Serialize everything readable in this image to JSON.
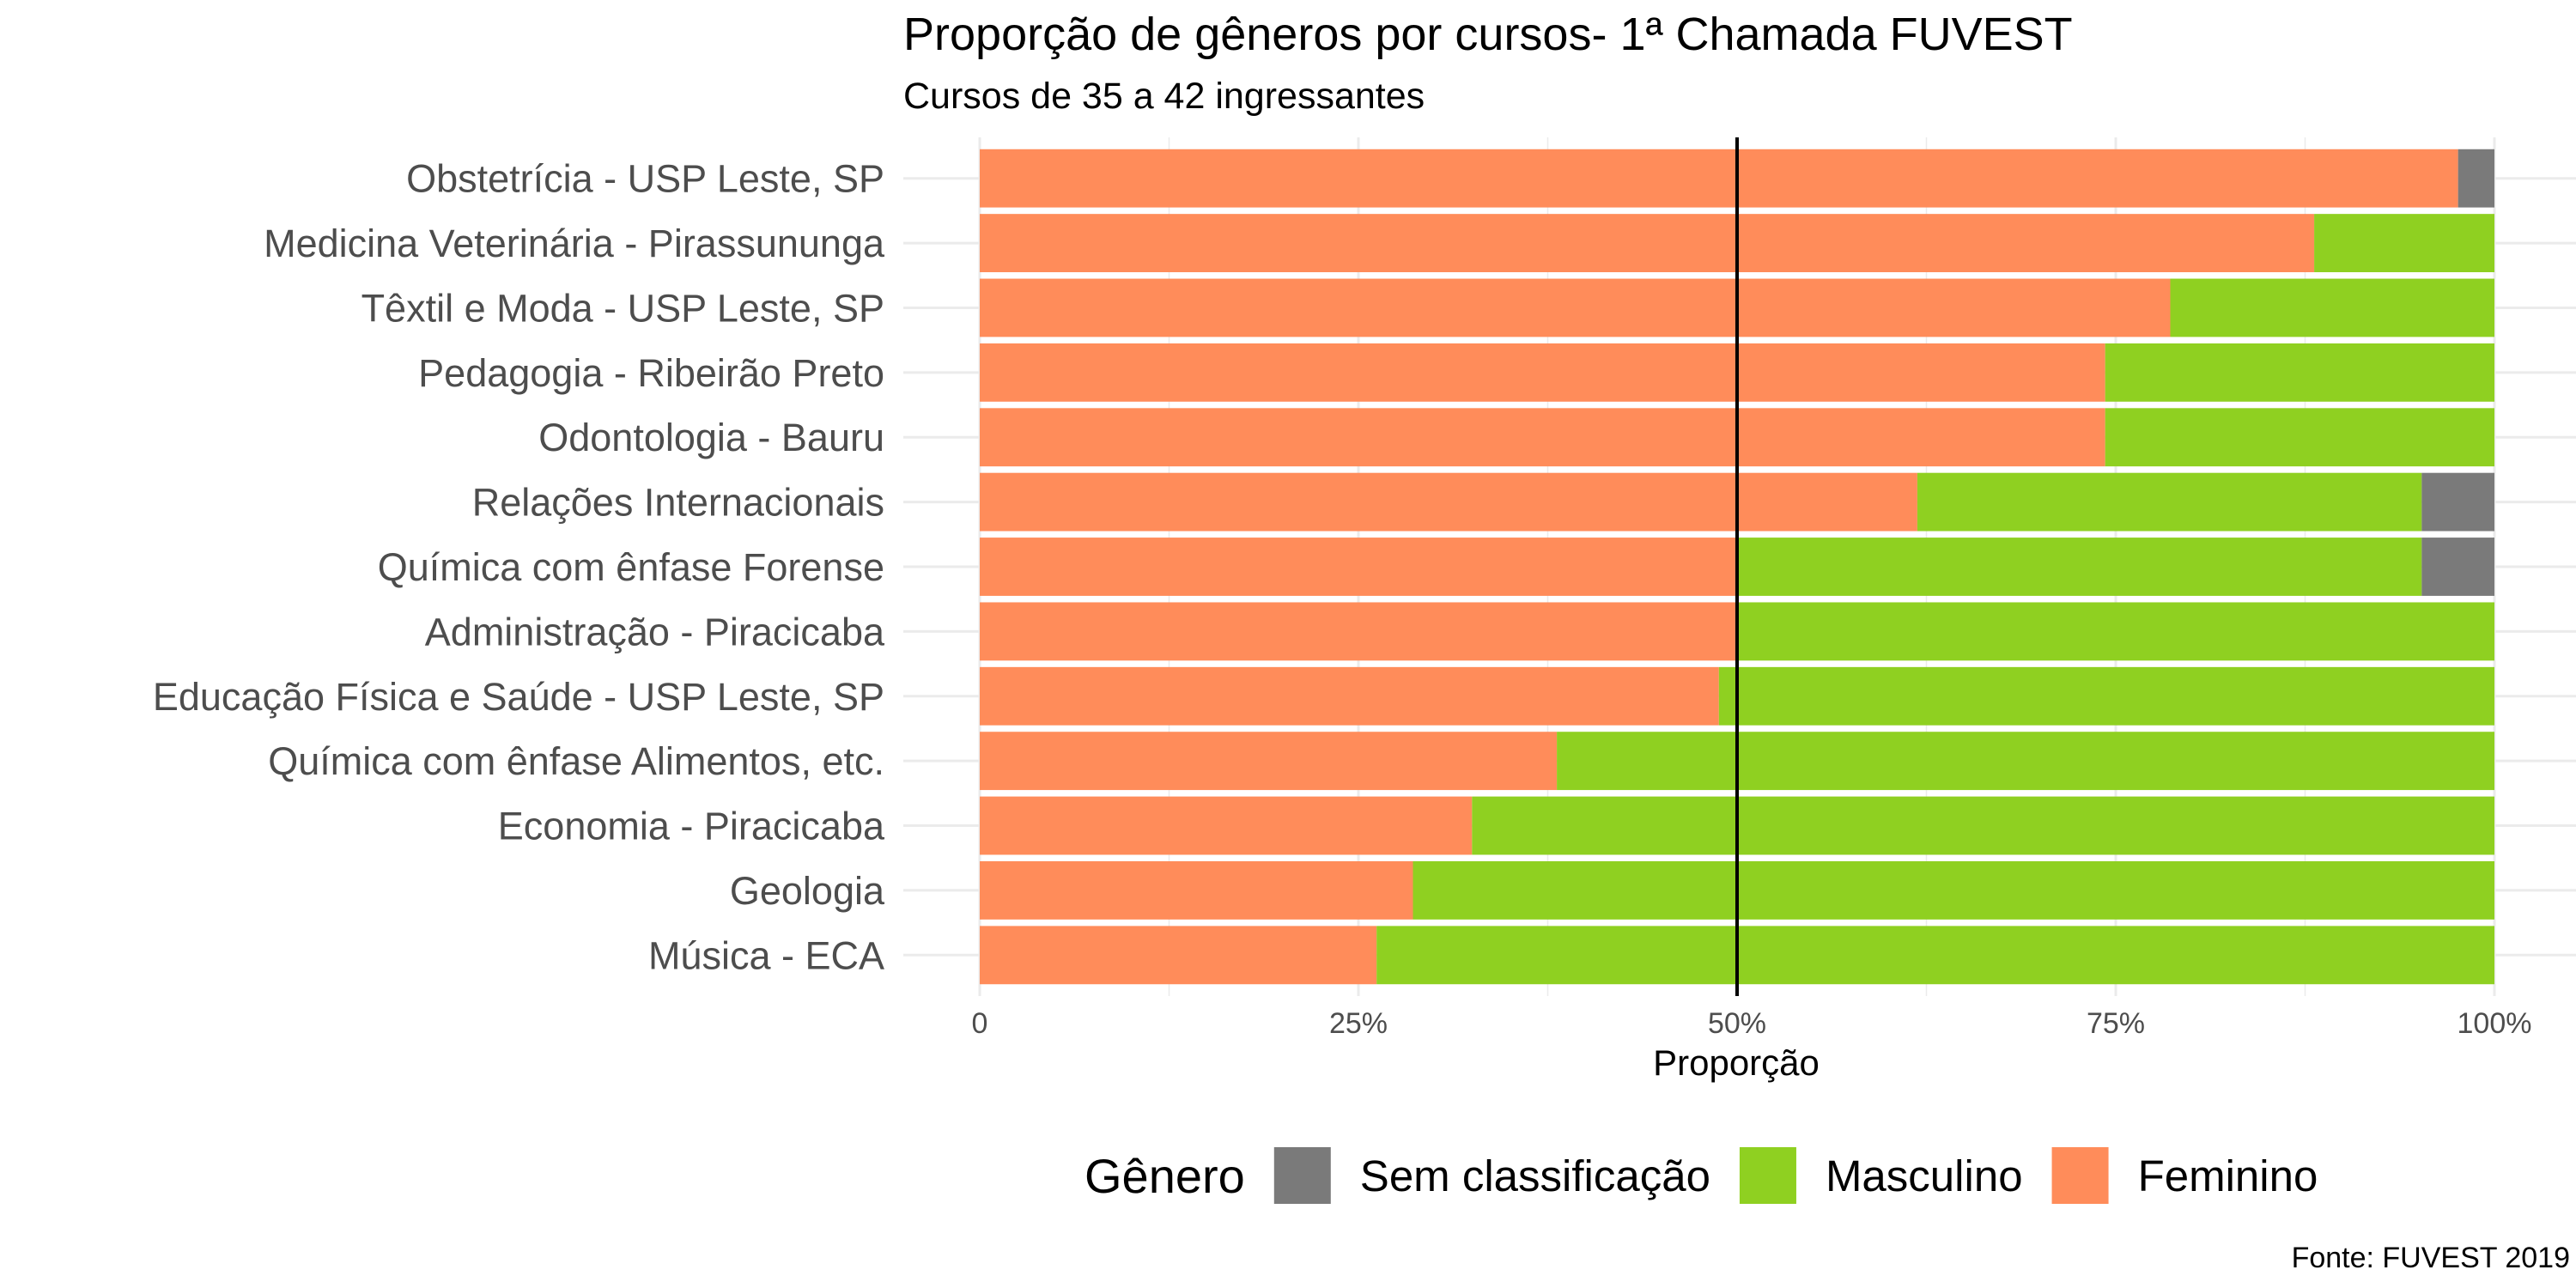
{
  "chart_data": {
    "type": "bar",
    "orientation": "horizontal",
    "stacked": true,
    "title": "Proporção de gêneros por cursos- 1ª Chamada FUVEST",
    "subtitle": "Cursos de 35 a 42 ingressantes",
    "xlabel": "Proporção",
    "ylabel": "",
    "xlim": [
      0,
      1
    ],
    "x_ticks": [
      "0",
      "25%",
      "50%",
      "75%",
      "100%"
    ],
    "reference_line": 0.5,
    "grid": true,
    "legend_position": "bottom",
    "legend_title": "Gênero",
    "caption": "Fonte: FUVEST 2019",
    "categories": [
      "Obstetrícia - USP Leste, SP",
      "Medicina Veterinária - Pirassununga",
      "Têxtil e Moda - USP Leste, SP",
      "Pedagogia - Ribeirão Preto",
      "Odontologia - Bauru",
      "Relações Internacionais",
      "Química com ênfase Forense",
      "Administração - Piracicaba",
      "Educação Física e Saúde - USP Leste, SP",
      "Química com ênfase Alimentos, etc.",
      "Economia - Piracicaba",
      "Geologia",
      "Música - ECA"
    ],
    "series": [
      {
        "name": "Feminino",
        "color": "#ff8c5a",
        "values": [
          0.976,
          0.881,
          0.786,
          0.743,
          0.743,
          0.619,
          0.5,
          0.5,
          0.488,
          0.381,
          0.325,
          0.286,
          0.262
        ]
      },
      {
        "name": "Masculino",
        "color": "#8fd021",
        "values": [
          0.0,
          0.119,
          0.214,
          0.257,
          0.257,
          0.333,
          0.452,
          0.5,
          0.512,
          0.619,
          0.675,
          0.714,
          0.738
        ]
      },
      {
        "name": "Sem classificação",
        "color": "#7a7a7a",
        "values": [
          0.024,
          0.0,
          0.0,
          0.0,
          0.0,
          0.048,
          0.048,
          0.0,
          0.0,
          0.0,
          0.0,
          0.0,
          0.0
        ]
      }
    ],
    "legend_order": [
      "Sem classificação",
      "Masculino",
      "Feminino"
    ]
  }
}
